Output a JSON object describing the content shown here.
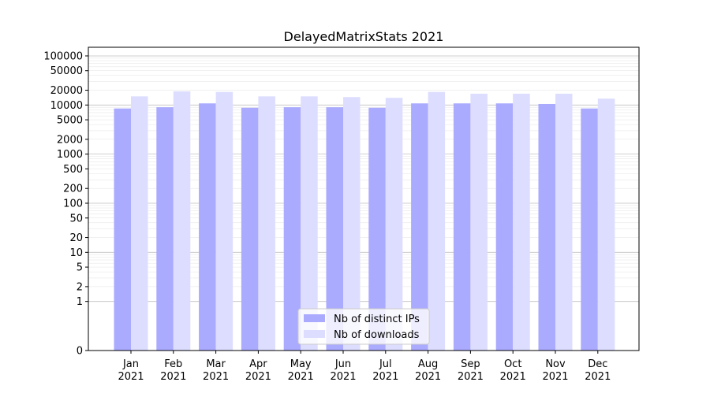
{
  "chart_data": {
    "type": "bar",
    "title": "DelayedMatrixStats 2021",
    "xlabel": "",
    "ylabel": "",
    "y_scale": "symlog",
    "ylim": [
      0,
      150000
    ],
    "y_ticks": [
      0,
      1,
      2,
      5,
      10,
      20,
      50,
      100,
      200,
      500,
      1000,
      2000,
      5000,
      10000,
      20000,
      50000,
      100000
    ],
    "y_tick_labels": [
      "0",
      "1",
      "2",
      "5",
      "10",
      "20",
      "50",
      "100",
      "200",
      "500",
      "1000",
      "2000",
      "5000",
      "10000",
      "20000",
      "50000",
      "100000"
    ],
    "categories": [
      "Jan\n2021",
      "Feb\n2021",
      "Mar\n2021",
      "Apr\n2021",
      "May\n2021",
      "Jun\n2021",
      "Jul\n2021",
      "Aug\n2021",
      "Sep\n2021",
      "Oct\n2021",
      "Nov\n2021",
      "Dec\n2021"
    ],
    "series": [
      {
        "name": "Nb of distinct IPs",
        "color": "#aaaaff",
        "values": [
          8500,
          9000,
          10800,
          8800,
          9000,
          9000,
          8800,
          10800,
          10800,
          10800,
          10500,
          8500
        ]
      },
      {
        "name": "Nb of downloads",
        "color": "#ddddff",
        "values": [
          15000,
          19000,
          18500,
          15000,
          15000,
          14500,
          14000,
          18500,
          17000,
          17000,
          17000,
          13500
        ]
      }
    ],
    "grid": true,
    "legend_position": "bottom-center"
  }
}
